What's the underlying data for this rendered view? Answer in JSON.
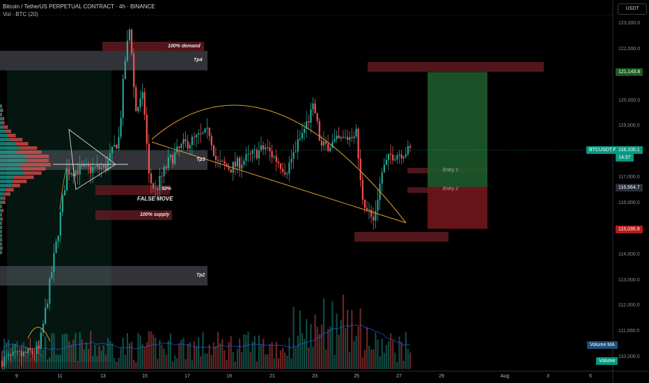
{
  "header": {
    "title": "Bitcoin / TetherUS PERPETUAL CONTRACT · 4h · BINANCE",
    "subtitle": "Vol · BTC (20)"
  },
  "currency_button": "USDT",
  "price_axis": [
    "123,000.0",
    "122,000.0",
    "121,000.0",
    "120,000.0",
    "119,000.0",
    "118,000.0",
    "117,000.0",
    "116,000.0",
    "115,000.0",
    "114,000.0",
    "113,000.0",
    "112,000.0",
    "111,000.0",
    "110,000.0"
  ],
  "badges": {
    "target": "121,143.8",
    "symbol": "BTCUSDT.P",
    "last_price": "118,100.1",
    "countdown": "14:37",
    "entry": "116,664.7",
    "stop": "115,035.9",
    "volume_ma": "Volume MA",
    "volume": "Volume"
  },
  "time_axis": [
    "9",
    "11",
    "13",
    "15",
    "17",
    "19",
    "21",
    "23",
    "25",
    "27",
    "29",
    "Aug",
    "3",
    "5"
  ],
  "annotations": {
    "demand": "100% demand",
    "tp4": "Tp4",
    "tp3": "Tp3",
    "tp2": "Tp2",
    "fifty": "50%",
    "false_move": "FALSE MOVE",
    "supply": "100% supply",
    "entry1": "Entry 1",
    "entry2": "Entry 2"
  },
  "colors": {
    "up": "#26a69a",
    "down": "#ef5350",
    "background": "#000000",
    "curve": "#d99a2b",
    "target_zone": "#1e5a2a",
    "stop_zone": "#6b1519",
    "last_price": "#089981"
  },
  "chart_data": {
    "type": "candlestick",
    "symbol": "BTCUSDT.P",
    "interval": "4h",
    "exchange": "BINANCE",
    "y_range": [
      109500,
      123500
    ],
    "last_price": 118100.1,
    "position": {
      "target": 121143.8,
      "entry": 116664.7,
      "stop": 115035.9
    }
  }
}
